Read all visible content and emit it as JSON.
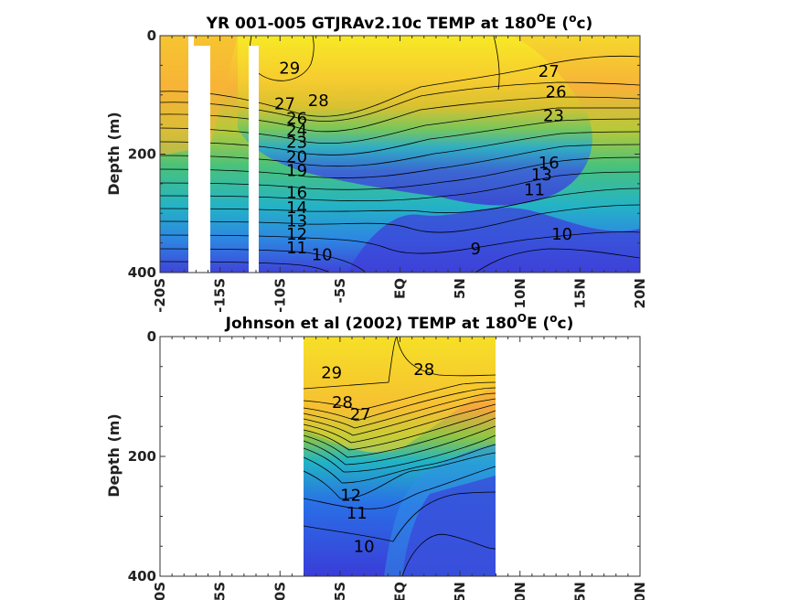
{
  "figure": {
    "panels": [
      {
        "title_main": "YR 001-005 GTJRAv2.10c TEMP at 180",
        "title_deg": "O",
        "title_mid": "E (",
        "title_unit": "o",
        "title_end": "c)"
      },
      {
        "title_main": "Johnson et al (2002) TEMP at 180",
        "title_deg": "O",
        "title_mid": "E (",
        "title_unit": "o",
        "title_end": "c)"
      }
    ],
    "ylabel": "Depth (m)",
    "xticks": [
      "-20S",
      "-15S",
      "-10S",
      "-5S",
      "EQ",
      "5N",
      "10N",
      "15N",
      "20N"
    ],
    "yticks": [
      "0",
      "200",
      "400"
    ]
  },
  "chart_data": [
    {
      "type": "heatmap",
      "title": "YR 001-005 GTJRAv2.10c TEMP at 180°E (°c)",
      "ylabel": "Depth (m)",
      "xlim": [
        -20,
        20
      ],
      "ylim": [
        400,
        0
      ],
      "colorscale": [
        "#3e3dd8",
        "#2a7fe8",
        "#21b6c8",
        "#3cc48c",
        "#8dc83f",
        "#d8c530",
        "#f7b535",
        "#f5d830",
        "#f9f021"
      ],
      "temperature_range": [
        9,
        29
      ],
      "contour_labels": [
        {
          "value": 29,
          "lat": -9.2,
          "depth": 55
        },
        {
          "value": 28,
          "lat": -6.8,
          "depth": 110
        },
        {
          "value": 27,
          "lat": -9.6,
          "depth": 115
        },
        {
          "value": 26,
          "lat": -8.6,
          "depth": 140
        },
        {
          "value": 24,
          "lat": -8.6,
          "depth": 160
        },
        {
          "value": 23,
          "lat": -8.6,
          "depth": 180
        },
        {
          "value": 20,
          "lat": -8.6,
          "depth": 205
        },
        {
          "value": 19,
          "lat": -8.6,
          "depth": 228
        },
        {
          "value": 16,
          "lat": -8.6,
          "depth": 265
        },
        {
          "value": 14,
          "lat": -8.6,
          "depth": 290
        },
        {
          "value": 13,
          "lat": -8.6,
          "depth": 313
        },
        {
          "value": 12,
          "lat": -8.6,
          "depth": 335
        },
        {
          "value": 11,
          "lat": -8.6,
          "depth": 358
        },
        {
          "value": 10,
          "lat": -6.5,
          "depth": 370
        },
        {
          "value": 9,
          "lat": 6.3,
          "depth": 360
        },
        {
          "value": 27,
          "lat": 12.4,
          "depth": 60
        },
        {
          "value": 26,
          "lat": 13.0,
          "depth": 95
        },
        {
          "value": 23,
          "lat": 12.8,
          "depth": 135
        },
        {
          "value": 16,
          "lat": 12.4,
          "depth": 215
        },
        {
          "value": 13,
          "lat": 11.8,
          "depth": 235
        },
        {
          "value": 11,
          "lat": 11.2,
          "depth": 260
        },
        {
          "value": 10,
          "lat": 13.5,
          "depth": 335
        }
      ],
      "masked_lat_bands": [
        [
          -18.0,
          -16.5
        ],
        [
          -12.8,
          -12.0
        ]
      ]
    },
    {
      "type": "heatmap",
      "title": "Johnson et al (2002) TEMP at 180°E (°c)",
      "ylabel": "Depth (m)",
      "xlim": [
        -20,
        20
      ],
      "ylim": [
        400,
        0
      ],
      "data_lat_range": [
        -8,
        8
      ],
      "colorscale": [
        "#3e3dd8",
        "#2a7fe8",
        "#21b6c8",
        "#3cc48c",
        "#8dc83f",
        "#d8c530",
        "#f7b535",
        "#f5d830",
        "#f9f021"
      ],
      "temperature_range": [
        10,
        29
      ],
      "contour_labels": [
        {
          "value": 29,
          "lat": -5.7,
          "depth": 60
        },
        {
          "value": 28,
          "lat": 2.0,
          "depth": 55
        },
        {
          "value": 28,
          "lat": -4.8,
          "depth": 110
        },
        {
          "value": 27,
          "lat": -3.3,
          "depth": 130
        },
        {
          "value": 12,
          "lat": -4.1,
          "depth": 265
        },
        {
          "value": 11,
          "lat": -3.6,
          "depth": 295
        },
        {
          "value": 10,
          "lat": -3.0,
          "depth": 350
        }
      ]
    }
  ]
}
